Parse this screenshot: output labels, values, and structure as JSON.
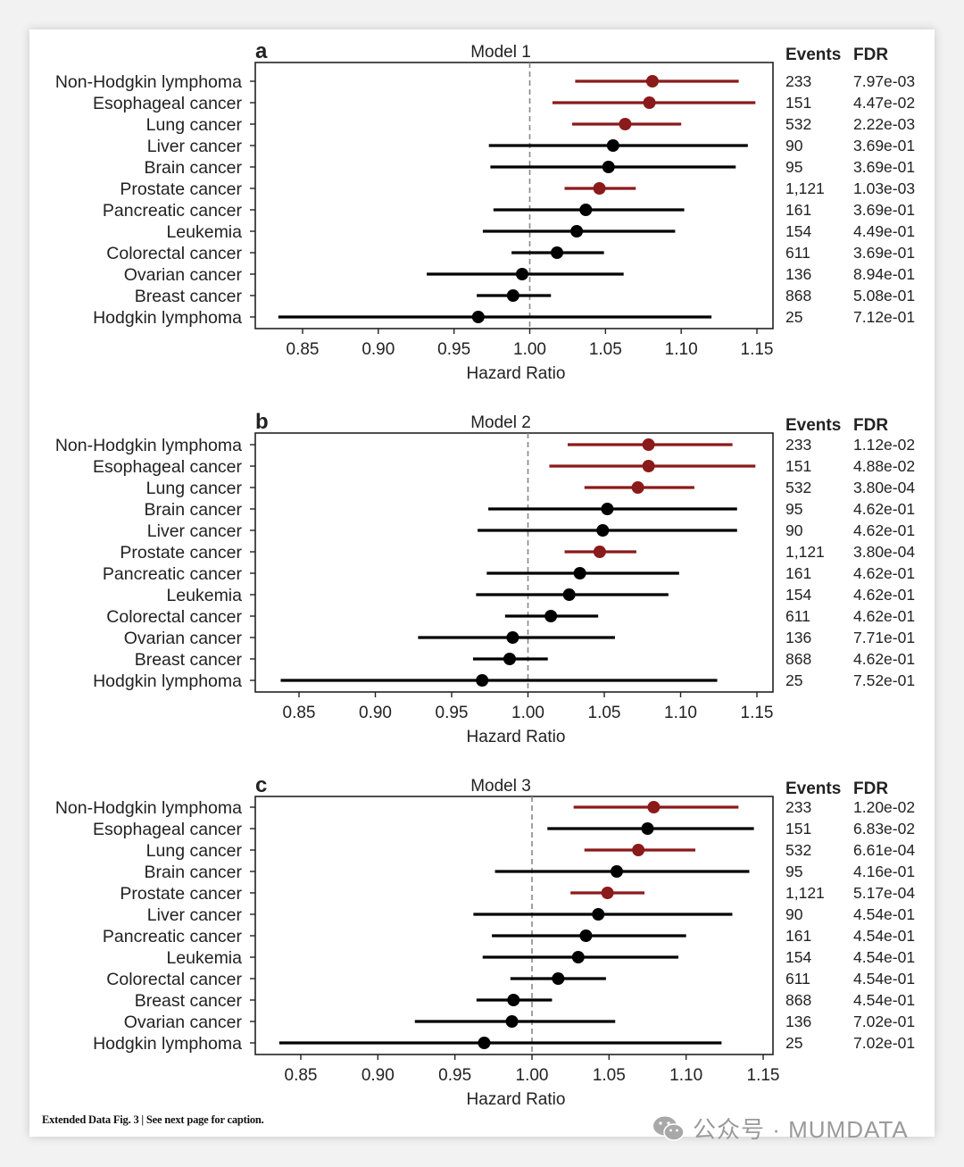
{
  "caption": "Extended Data Fig. 3 | See next page for caption.",
  "watermark": {
    "text": "公众号 · MUMDATA",
    "icon": "wechat-icon"
  },
  "colors": {
    "significant": "#8b1a1a",
    "nonsignificant": "#000000",
    "reference_line": "#888888"
  },
  "chart_data": [
    {
      "type": "forest",
      "panel": "a",
      "title": "Model 1",
      "xlabel": "Hazard Ratio",
      "xlim": [
        0.834,
        1.149
      ],
      "xticks": [
        0.85,
        0.9,
        0.95,
        1.0,
        1.05,
        1.1,
        1.15
      ],
      "xtick_labels": [
        "0.85",
        "0.90",
        "0.95",
        "1.00",
        "1.05",
        "1.10",
        "1.15"
      ],
      "reference": 1.0,
      "col_headers": [
        "Events",
        "FDR"
      ],
      "rows": [
        {
          "label": "Non-Hodgkin lymphoma",
          "hr": 1.081,
          "lo": 1.03,
          "hi": 1.138,
          "events": "233",
          "fdr": "7.97e-03",
          "significant": true
        },
        {
          "label": "Esophageal cancer",
          "hr": 1.079,
          "lo": 1.015,
          "hi": 1.149,
          "events": "151",
          "fdr": "4.47e-02",
          "significant": true
        },
        {
          "label": "Lung cancer",
          "hr": 1.063,
          "lo": 1.028,
          "hi": 1.1,
          "events": "532",
          "fdr": "2.22e-03",
          "significant": true
        },
        {
          "label": "Liver cancer",
          "hr": 1.055,
          "lo": 0.973,
          "hi": 1.144,
          "events": "90",
          "fdr": "3.69e-01",
          "significant": false
        },
        {
          "label": "Brain cancer",
          "hr": 1.052,
          "lo": 0.974,
          "hi": 1.136,
          "events": "95",
          "fdr": "3.69e-01",
          "significant": false
        },
        {
          "label": "Prostate cancer",
          "hr": 1.046,
          "lo": 1.023,
          "hi": 1.07,
          "events": "1,121",
          "fdr": "1.03e-03",
          "significant": true
        },
        {
          "label": "Pancreatic cancer",
          "hr": 1.037,
          "lo": 0.976,
          "hi": 1.102,
          "events": "161",
          "fdr": "3.69e-01",
          "significant": false
        },
        {
          "label": "Leukemia",
          "hr": 1.031,
          "lo": 0.969,
          "hi": 1.096,
          "events": "154",
          "fdr": "4.49e-01",
          "significant": false
        },
        {
          "label": "Colorectal cancer",
          "hr": 1.018,
          "lo": 0.988,
          "hi": 1.049,
          "events": "611",
          "fdr": "3.69e-01",
          "significant": false
        },
        {
          "label": "Ovarian cancer",
          "hr": 0.995,
          "lo": 0.932,
          "hi": 1.062,
          "events": "136",
          "fdr": "8.94e-01",
          "significant": false
        },
        {
          "label": "Breast cancer",
          "hr": 0.989,
          "lo": 0.965,
          "hi": 1.014,
          "events": "868",
          "fdr": "5.08e-01",
          "significant": false
        },
        {
          "label": "Hodgkin lymphoma",
          "hr": 0.966,
          "lo": 0.834,
          "hi": 1.12,
          "events": "25",
          "fdr": "7.12e-01",
          "significant": false
        }
      ]
    },
    {
      "type": "forest",
      "panel": "b",
      "title": "Model 2",
      "xlabel": "Hazard Ratio",
      "xlim": [
        0.834,
        1.149
      ],
      "xticks": [
        0.85,
        0.9,
        0.95,
        1.0,
        1.05,
        1.1,
        1.15
      ],
      "xtick_labels": [
        "0.85",
        "0.90",
        "0.95",
        "1.00",
        "1.05",
        "1.10",
        "1.15"
      ],
      "reference": 1.0,
      "col_headers": [
        "Events",
        "FDR"
      ],
      "rows": [
        {
          "label": "Non-Hodgkin lymphoma",
          "hr": 1.079,
          "lo": 1.026,
          "hi": 1.134,
          "events": "233",
          "fdr": "1.12e-02",
          "significant": true
        },
        {
          "label": "Esophageal cancer",
          "hr": 1.079,
          "lo": 1.014,
          "hi": 1.149,
          "events": "151",
          "fdr": "4.88e-02",
          "significant": true
        },
        {
          "label": "Lung cancer",
          "hr": 1.072,
          "lo": 1.037,
          "hi": 1.109,
          "events": "532",
          "fdr": "3.80e-04",
          "significant": true
        },
        {
          "label": "Brain cancer",
          "hr": 1.052,
          "lo": 0.974,
          "hi": 1.137,
          "events": "95",
          "fdr": "4.62e-01",
          "significant": false
        },
        {
          "label": "Liver cancer",
          "hr": 1.049,
          "lo": 0.967,
          "hi": 1.137,
          "events": "90",
          "fdr": "4.62e-01",
          "significant": false
        },
        {
          "label": "Prostate cancer",
          "hr": 1.047,
          "lo": 1.024,
          "hi": 1.071,
          "events": "1,121",
          "fdr": "3.80e-04",
          "significant": true
        },
        {
          "label": "Pancreatic cancer",
          "hr": 1.034,
          "lo": 0.973,
          "hi": 1.099,
          "events": "161",
          "fdr": "4.62e-01",
          "significant": false
        },
        {
          "label": "Leukemia",
          "hr": 1.027,
          "lo": 0.966,
          "hi": 1.092,
          "events": "154",
          "fdr": "4.62e-01",
          "significant": false
        },
        {
          "label": "Colorectal cancer",
          "hr": 1.015,
          "lo": 0.985,
          "hi": 1.046,
          "events": "611",
          "fdr": "4.62e-01",
          "significant": false
        },
        {
          "label": "Ovarian cancer",
          "hr": 0.99,
          "lo": 0.928,
          "hi": 1.057,
          "events": "136",
          "fdr": "7.71e-01",
          "significant": false
        },
        {
          "label": "Breast cancer",
          "hr": 0.988,
          "lo": 0.964,
          "hi": 1.013,
          "events": "868",
          "fdr": "4.62e-01",
          "significant": false
        },
        {
          "label": "Hodgkin lymphoma",
          "hr": 0.97,
          "lo": 0.838,
          "hi": 1.124,
          "events": "25",
          "fdr": "7.52e-01",
          "significant": false
        }
      ]
    },
    {
      "type": "forest",
      "panel": "c",
      "title": "Model 3",
      "xlabel": "Hazard Ratio",
      "xlim": [
        0.834,
        1.152
      ],
      "xticks": [
        0.85,
        0.9,
        0.95,
        1.0,
        1.05,
        1.1,
        1.15
      ],
      "xtick_labels": [
        "0.85",
        "0.90",
        "0.95",
        "1.00",
        "1.05",
        "1.10",
        "1.15"
      ],
      "reference": 1.0,
      "col_headers": [
        "Events",
        "FDR"
      ],
      "rows": [
        {
          "label": "Non-Hodgkin lymphoma",
          "hr": 1.079,
          "lo": 1.027,
          "hi": 1.134,
          "events": "233",
          "fdr": "1.20e-02",
          "significant": true
        },
        {
          "label": "Esophageal cancer",
          "hr": 1.075,
          "lo": 1.01,
          "hi": 1.144,
          "events": "151",
          "fdr": "6.83e-02",
          "significant": false
        },
        {
          "label": "Lung cancer",
          "hr": 1.069,
          "lo": 1.034,
          "hi": 1.106,
          "events": "532",
          "fdr": "6.61e-04",
          "significant": true
        },
        {
          "label": "Brain cancer",
          "hr": 1.055,
          "lo": 0.976,
          "hi": 1.141,
          "events": "95",
          "fdr": "4.16e-01",
          "significant": false
        },
        {
          "label": "Prostate cancer",
          "hr": 1.049,
          "lo": 1.025,
          "hi": 1.073,
          "events": "1,121",
          "fdr": "5.17e-04",
          "significant": true
        },
        {
          "label": "Liver cancer",
          "hr": 1.043,
          "lo": 0.962,
          "hi": 1.13,
          "events": "90",
          "fdr": "4.54e-01",
          "significant": false
        },
        {
          "label": "Pancreatic cancer",
          "hr": 1.035,
          "lo": 0.974,
          "hi": 1.1,
          "events": "161",
          "fdr": "4.54e-01",
          "significant": false
        },
        {
          "label": "Leukemia",
          "hr": 1.03,
          "lo": 0.968,
          "hi": 1.095,
          "events": "154",
          "fdr": "4.54e-01",
          "significant": false
        },
        {
          "label": "Colorectal cancer",
          "hr": 1.017,
          "lo": 0.986,
          "hi": 1.048,
          "events": "611",
          "fdr": "4.54e-01",
          "significant": false
        },
        {
          "label": "Breast cancer",
          "hr": 0.988,
          "lo": 0.964,
          "hi": 1.013,
          "events": "868",
          "fdr": "4.54e-01",
          "significant": false
        },
        {
          "label": "Ovarian cancer",
          "hr": 0.987,
          "lo": 0.924,
          "hi": 1.054,
          "events": "136",
          "fdr": "7.02e-01",
          "significant": false
        },
        {
          "label": "Hodgkin lymphoma",
          "hr": 0.969,
          "lo": 0.836,
          "hi": 1.123,
          "events": "25",
          "fdr": "7.02e-01",
          "significant": false
        }
      ]
    }
  ]
}
